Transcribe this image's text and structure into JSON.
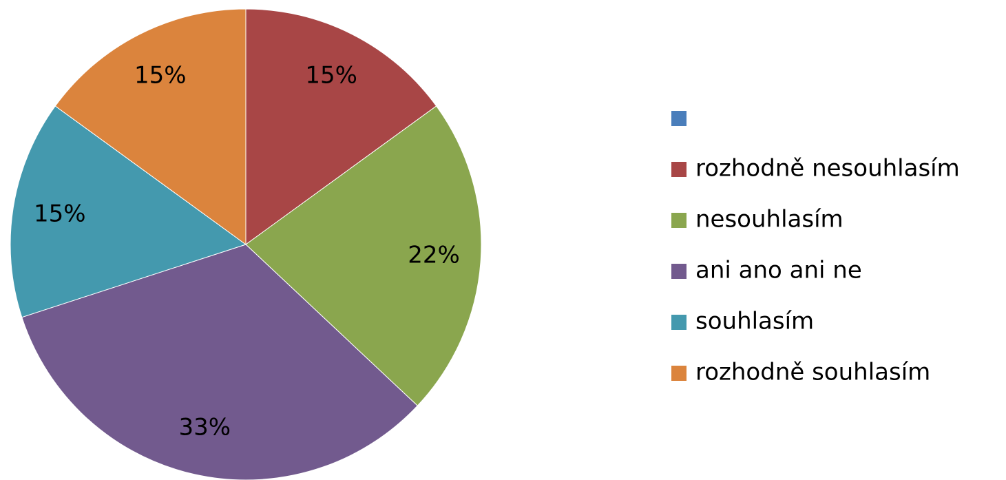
{
  "chart_data": {
    "type": "pie",
    "categories": [
      null,
      "rozhodně nesouhlasím",
      "nesouhlasím",
      "ani ano ani ne",
      "souhlasím",
      "rozhodně souhlasím"
    ],
    "values": [
      0,
      15,
      22,
      33,
      15,
      15
    ],
    "value_labels": [
      null,
      "15%",
      "22%",
      "33%",
      "15%",
      "15%"
    ],
    "colors": [
      "#4a7ebb",
      "#a84646",
      "#8aa64e",
      "#725a8e",
      "#4499ae",
      "#db843d"
    ],
    "legend": "right"
  }
}
